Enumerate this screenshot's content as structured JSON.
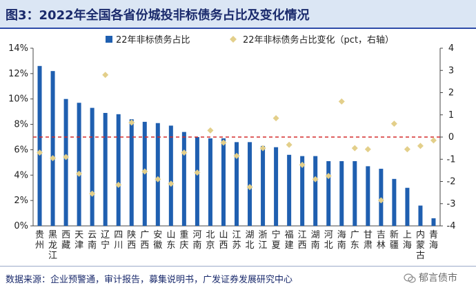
{
  "title": "图3：2022年全国各省份城投非标债务占比及变化情况",
  "source": "数据来源：企业预警通，审计报告，募集说明书，广发证券发展研究中心",
  "watermark": "郁言债市",
  "chart_data": {
    "type": "bar",
    "legend": {
      "bar": "22年非标债务占比",
      "point": "22年非标债务占比变化（pct，右轴）",
      "placement": "top-center"
    },
    "colors": {
      "bar": "#1f5fb0",
      "point": "#e3cf8a",
      "refline": "#d42a2a"
    },
    "categories": [
      "贵州",
      "黑龙江",
      "西藏",
      "天津",
      "云南",
      "辽宁",
      "四川",
      "陕西",
      "广西",
      "安徽",
      "山东",
      "重庆",
      "河南",
      "北京",
      "山西",
      "江苏",
      "湖北",
      "浙江",
      "宁夏",
      "福建",
      "江西",
      "湖南",
      "河北",
      "海南",
      "广东",
      "甘肃",
      "吉林",
      "新疆",
      "上海",
      "内蒙古",
      "青海"
    ],
    "series": [
      {
        "name": "22年非标债务占比",
        "axis": "left",
        "values": [
          12.6,
          12.2,
          10.0,
          9.7,
          9.3,
          8.9,
          8.8,
          8.4,
          8.2,
          8.1,
          7.9,
          7.4,
          7.0,
          6.9,
          6.9,
          6.6,
          6.6,
          6.3,
          6.2,
          5.6,
          5.5,
          5.5,
          5.1,
          5.1,
          5.1,
          4.7,
          4.5,
          3.7,
          3.0,
          1.6,
          0.6
        ]
      },
      {
        "name": "22年非标债务占比变化（pct，右轴）",
        "axis": "right",
        "values": [
          -0.7,
          -0.95,
          -0.9,
          -1.65,
          -2.55,
          2.8,
          -2.15,
          0.65,
          -1.55,
          -1.9,
          -2.1,
          -0.7,
          -1.6,
          0.3,
          -0.25,
          -0.85,
          -2.25,
          -0.5,
          0.85,
          -0.35,
          -1.25,
          -1.9,
          -1.75,
          1.6,
          -0.5,
          -0.55,
          -2.85,
          0.6,
          -0.55,
          -0.4,
          -0.15
        ]
      }
    ],
    "yleft": {
      "min": 0,
      "max": 14,
      "ticks": [
        "0%",
        "2%",
        "4%",
        "6%",
        "8%",
        "10%",
        "12%",
        "14%"
      ]
    },
    "yright": {
      "min": -4,
      "max": 4,
      "ticks": [
        "-4",
        "-3",
        "-2",
        "-1",
        "0",
        "1",
        "2",
        "3",
        "4"
      ]
    },
    "reference_line": {
      "axis": "right",
      "value": 0,
      "style": "dashed"
    },
    "grid": false
  }
}
